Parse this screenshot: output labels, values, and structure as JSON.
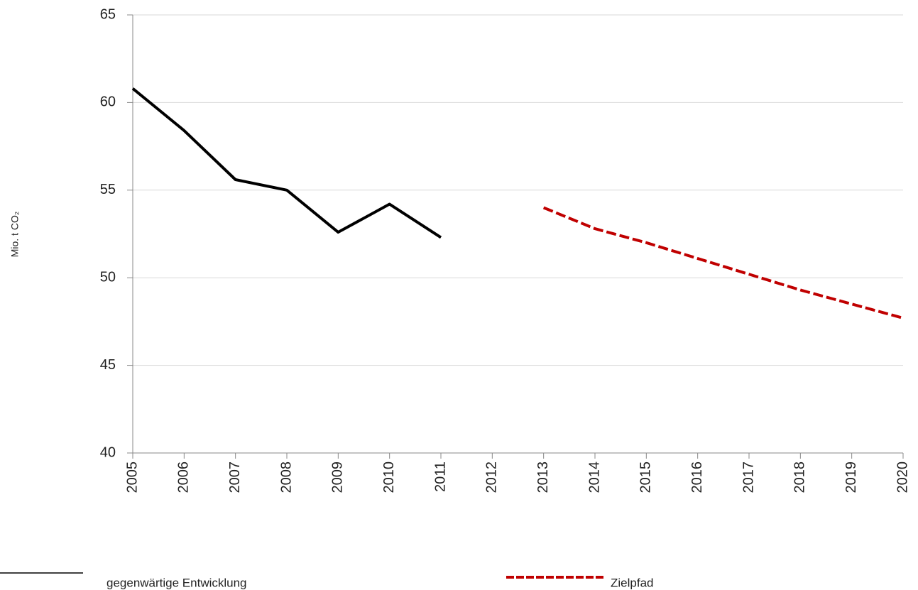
{
  "chart_data": {
    "type": "line",
    "y_label": "Mio. t CO₂",
    "x": [
      2005,
      2006,
      2007,
      2008,
      2009,
      2010,
      2011,
      2012,
      2013,
      2014,
      2015,
      2016,
      2017,
      2018,
      2019,
      2020
    ],
    "xlim": [
      2005,
      2020
    ],
    "xticks": [
      2005,
      2006,
      2007,
      2008,
      2009,
      2010,
      2011,
      2012,
      2013,
      2014,
      2015,
      2016,
      2017,
      2018,
      2019,
      2020
    ],
    "ylim": [
      40,
      65
    ],
    "yticks": [
      40,
      45,
      50,
      55,
      60,
      65
    ],
    "grid": true,
    "legend": "bottom",
    "series": [
      {
        "name": "gegenwärtige Entwicklung",
        "color": "#000000",
        "dash": false,
        "values": [
          60.8,
          58.4,
          55.6,
          55.0,
          52.6,
          54.2,
          52.3,
          null,
          null,
          null,
          null,
          null,
          null,
          null,
          null,
          null
        ]
      },
      {
        "name": "Zielpfad",
        "color": "#c00000",
        "dash": true,
        "values": [
          null,
          null,
          null,
          null,
          null,
          null,
          null,
          null,
          54.0,
          52.8,
          52.0,
          51.1,
          50.2,
          49.3,
          48.5,
          47.7
        ]
      }
    ]
  }
}
